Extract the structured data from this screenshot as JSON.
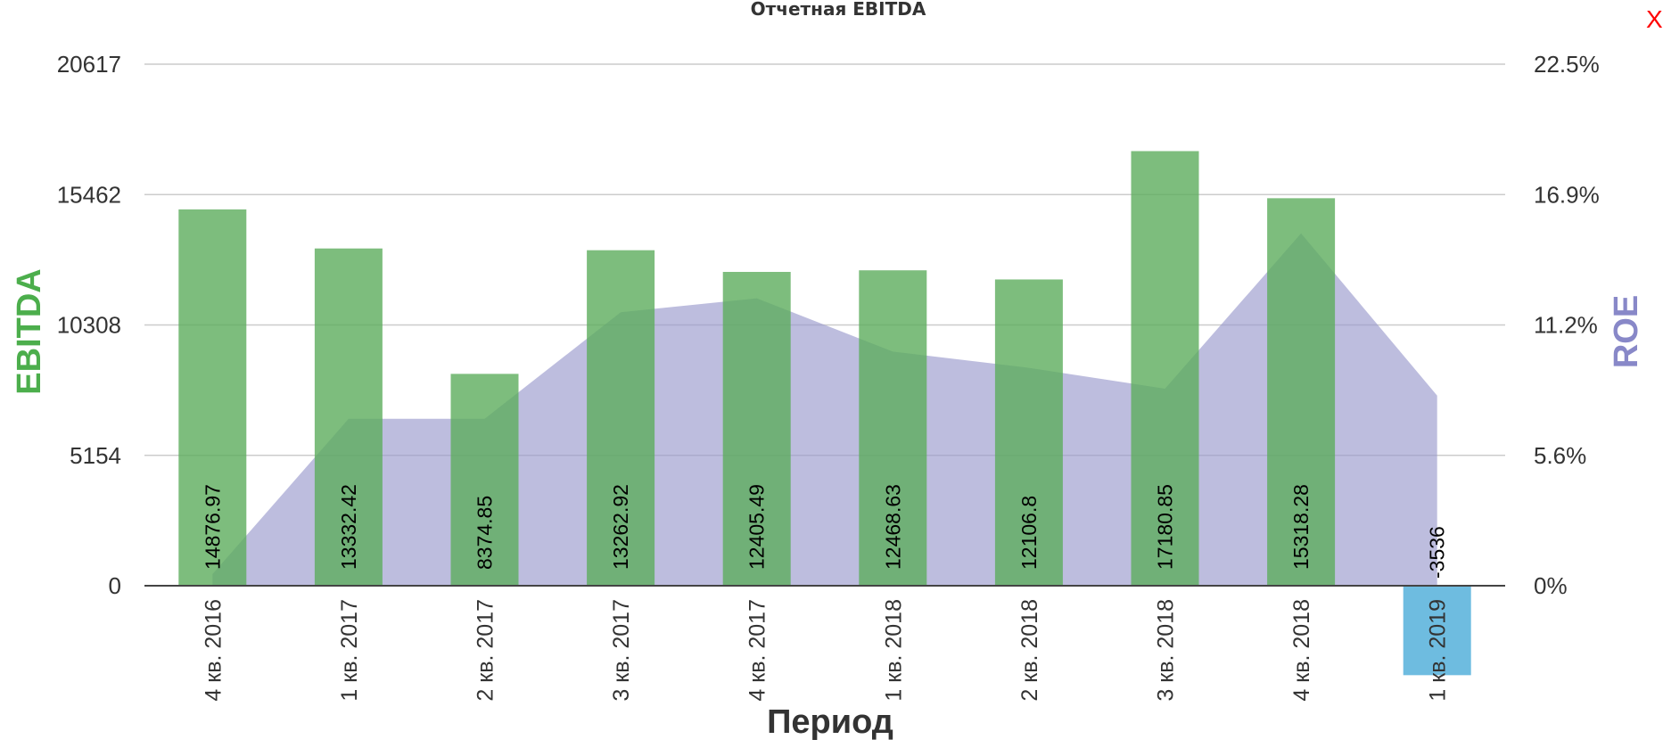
{
  "close_label": "X",
  "chart_data": {
    "type": "bar",
    "title": "Отчетная EBITDA",
    "xlabel": "Период",
    "ylabel": "EBITDA",
    "y2label": "ROE",
    "categories": [
      "4 кв. 2016",
      "1 кв. 2017",
      "2 кв. 2017",
      "3 кв. 2017",
      "4 кв. 2017",
      "1 кв. 2018",
      "2 кв. 2018",
      "3 кв. 2018",
      "4 кв. 2018",
      "1 кв. 2019"
    ],
    "series": [
      {
        "name": "EBITDA",
        "type": "bar",
        "axis": "left",
        "values": [
          14876.97,
          13332.42,
          8374.85,
          13262.92,
          12405.49,
          12468.63,
          12106.8,
          17180.85,
          15318.28,
          -3536
        ],
        "value_labels": [
          "14876.97",
          "13332.42",
          "8374.85",
          "13262.92",
          "12405.49",
          "12468.63",
          "12106.8",
          "17180.85",
          "15318.28",
          "-3536"
        ]
      },
      {
        "name": "ROE",
        "type": "area",
        "axis": "right",
        "unit": "%",
        "values": [
          0.5,
          7.2,
          7.2,
          11.8,
          12.4,
          10.1,
          9.4,
          8.5,
          15.2,
          8.2
        ]
      }
    ],
    "ylim": [
      0,
      20617
    ],
    "y2lim": [
      0,
      22.5
    ],
    "yticks": [
      "0",
      "5154",
      "10308",
      "15462",
      "20617"
    ],
    "y2ticks": [
      "0%",
      "5.6%",
      "11.2%",
      "16.9%",
      "22.5%"
    ],
    "grid": true,
    "legend": "none",
    "colors": {
      "positive_bar": "#5cad5c",
      "negative_bar": "#5eb5dd",
      "area": "#9999cc",
      "ylabel": "#4cae4c",
      "y2label": "#8888c8",
      "grid": "#cccccc"
    }
  }
}
